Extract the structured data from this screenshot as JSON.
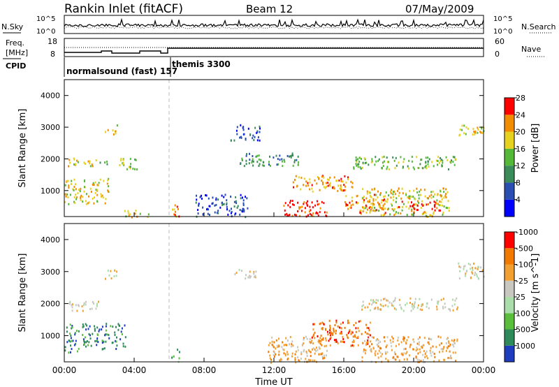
{
  "header": {
    "station": "Rankin Inlet (fitACF)",
    "beam": "Beam 12",
    "date": "07/May/2009"
  },
  "nsky_panel": {
    "left_label": "N.Sky",
    "left_ticks": [
      "10^5",
      "10^0"
    ],
    "right_label": "N.Search",
    "right_ticks": [
      "10^5",
      "10^0"
    ]
  },
  "freq_panel": {
    "left_label_line1": "Freq.",
    "left_label_line2": "[MHz]",
    "left_ticks": [
      "18",
      "8"
    ],
    "right_label": "Nave",
    "right_ticks": [
      "60",
      "0"
    ]
  },
  "cpid_panel": {
    "label": "CPID",
    "modes": [
      "normalsound (fast) 157",
      "themis 3300"
    ]
  },
  "chart_data": [
    {
      "type": "heatmap",
      "quantity": "Power",
      "xlabel": "",
      "ylabel": "Slant Range [km]",
      "xlim_hours": [
        0,
        24
      ],
      "ylim": [
        180,
        4500
      ],
      "yticks": [
        1000,
        2000,
        3000,
        4000
      ],
      "color_scale": {
        "label": "Power [dB]",
        "ticks": [
          "4",
          "8",
          "12",
          "16",
          "20",
          "24",
          "28"
        ],
        "colors": [
          "#0000ff",
          "#2a4fb0",
          "#3c8c5a",
          "#55b838",
          "#e6d21e",
          "#f28c00",
          "#ff0000"
        ]
      },
      "regions": [
        {
          "t": [
            0.0,
            2.7
          ],
          "r": [
            600,
            1400
          ],
          "level": 4
        },
        {
          "t": [
            0.2,
            1.8
          ],
          "r": [
            1750,
            2050
          ],
          "level": 4
        },
        {
          "t": [
            1.9,
            2.5
          ],
          "r": [
            1800,
            2000
          ],
          "level": 3
        },
        {
          "t": [
            2.3,
            3.0
          ],
          "r": [
            2800,
            3100
          ],
          "level": 4
        },
        {
          "t": [
            3.0,
            4.2
          ],
          "r": [
            1700,
            2050
          ],
          "level": 3
        },
        {
          "t": [
            3.3,
            4.8
          ],
          "r": [
            180,
            400
          ],
          "level": 4
        },
        {
          "t": [
            6.1,
            6.6
          ],
          "r": [
            180,
            600
          ],
          "level": 5
        },
        {
          "t": [
            7.5,
            10.5
          ],
          "r": [
            180,
            900
          ],
          "level": 1
        },
        {
          "t": [
            9.5,
            11.2
          ],
          "r": [
            2600,
            3100
          ],
          "level": 1
        },
        {
          "t": [
            10.0,
            13.5
          ],
          "r": [
            1800,
            2200
          ],
          "level": 2
        },
        {
          "t": [
            12.5,
            15.0
          ],
          "r": [
            180,
            750
          ],
          "level": 6
        },
        {
          "t": [
            13.0,
            16.5
          ],
          "r": [
            1000,
            1500
          ],
          "level": 5
        },
        {
          "t": [
            16.0,
            18.5
          ],
          "r": [
            300,
            900
          ],
          "level": 5
        },
        {
          "t": [
            16.5,
            22.5
          ],
          "r": [
            1700,
            2100
          ],
          "level": 3
        },
        {
          "t": [
            17.0,
            22.0
          ],
          "r": [
            200,
            1100
          ],
          "level": 4
        },
        {
          "t": [
            19.0,
            21.5
          ],
          "r": [
            400,
            700
          ],
          "level": 6
        },
        {
          "t": [
            22.5,
            24.0
          ],
          "r": [
            2700,
            3100
          ],
          "level": 4
        }
      ]
    },
    {
      "type": "heatmap",
      "quantity": "Velocity",
      "xlabel": "Time UT",
      "ylabel": "Slant Range [km]",
      "xlim_hours": [
        0,
        24
      ],
      "ylim": [
        180,
        4500
      ],
      "yticks": [
        1000,
        2000,
        3000,
        4000
      ],
      "xticks": [
        "00:00",
        "04:00",
        "08:00",
        "12:00",
        "16:00",
        "20:00",
        "00:00"
      ],
      "color_scale": {
        "label": "Velocity [m s^-1]",
        "ticks": [
          "1000",
          "500",
          "100",
          "25",
          "-25",
          "-100",
          "-500",
          "-1000"
        ],
        "colors": [
          "#1e3cbe",
          "#2e8a5a",
          "#5abe3c",
          "#aaddaa",
          "#c8c8c0",
          "#f2a032",
          "#f27a00",
          "#ff0000"
        ]
      },
      "regions": [
        {
          "t": [
            0.0,
            0.8
          ],
          "r": [
            500,
            1400
          ],
          "level": 1
        },
        {
          "t": [
            1.0,
            3.5
          ],
          "r": [
            600,
            1400
          ],
          "level": 1
        },
        {
          "t": [
            0.2,
            2.0
          ],
          "r": [
            1800,
            2100
          ],
          "level": 4
        },
        {
          "t": [
            2.3,
            3.0
          ],
          "r": [
            2800,
            3100
          ],
          "level": 4
        },
        {
          "t": [
            6.1,
            6.6
          ],
          "r": [
            180,
            600
          ],
          "level": 2
        },
        {
          "t": [
            9.5,
            11.0
          ],
          "r": [
            2800,
            3100
          ],
          "level": 4
        },
        {
          "t": [
            11.5,
            15.0
          ],
          "r": [
            180,
            1000
          ],
          "level": 5
        },
        {
          "t": [
            14.0,
            17.5
          ],
          "r": [
            700,
            1500
          ],
          "level": 6
        },
        {
          "t": [
            17.0,
            22.5
          ],
          "r": [
            200,
            1000
          ],
          "level": 5
        },
        {
          "t": [
            17.0,
            22.5
          ],
          "r": [
            1800,
            2200
          ],
          "level": 4
        },
        {
          "t": [
            22.5,
            24.0
          ],
          "r": [
            2800,
            3300
          ],
          "level": 4
        }
      ]
    }
  ]
}
